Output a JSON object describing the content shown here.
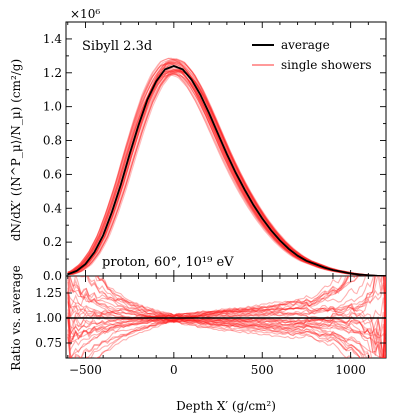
{
  "chart_data": {
    "type": "line",
    "panels": [
      {
        "id": "main",
        "ylabel": "dN/dX′ (⟨N^P_μ⟩/N_μ) (cm²/g)",
        "ylim": [
          0.0,
          1.5
        ],
        "yticks": [
          "0.0",
          "0.2",
          "0.4",
          "0.6",
          "0.8",
          "1.0",
          "1.2",
          "1.4"
        ],
        "yscale_label": "×10⁶",
        "model_label": "Sibyll 2.3d",
        "annotation": "proton, 60°, 10¹⁹ eV",
        "legend": {
          "placement": "top-right",
          "entries": [
            "average",
            "single showers"
          ]
        }
      },
      {
        "id": "ratio",
        "ylabel": "Ratio vs. average",
        "ylim": [
          0.6,
          1.42
        ],
        "yticks": [
          "0.75",
          "1.00",
          "1.25"
        ],
        "reference_line": 1.0
      }
    ],
    "xlabel": "Depth X′ (g/cm²)",
    "xlim": [
      -610,
      1200
    ],
    "xticks": [
      "−500",
      "0",
      "500",
      "1000"
    ],
    "series": [
      {
        "name": "average",
        "color": "#000000",
        "x": [
          -600,
          -550,
          -500,
          -450,
          -400,
          -350,
          -300,
          -250,
          -200,
          -150,
          -100,
          -50,
          0,
          50,
          100,
          150,
          200,
          250,
          300,
          350,
          400,
          450,
          500,
          550,
          600,
          650,
          700,
          750,
          800,
          850,
          900,
          950,
          1000,
          1050,
          1100,
          1150,
          1200
        ],
        "y": [
          0.01,
          0.03,
          0.07,
          0.14,
          0.24,
          0.38,
          0.54,
          0.72,
          0.89,
          1.04,
          1.15,
          1.22,
          1.24,
          1.22,
          1.16,
          1.07,
          0.96,
          0.84,
          0.72,
          0.61,
          0.51,
          0.42,
          0.34,
          0.27,
          0.21,
          0.16,
          0.12,
          0.09,
          0.07,
          0.05,
          0.035,
          0.025,
          0.015,
          0.009,
          0.004,
          0.001,
          0.0
        ]
      },
      {
        "name": "single showers",
        "color": "#ff2020",
        "count": 40
      }
    ]
  },
  "colors": {
    "average": "#000000",
    "single_showers": "#ff2020"
  }
}
